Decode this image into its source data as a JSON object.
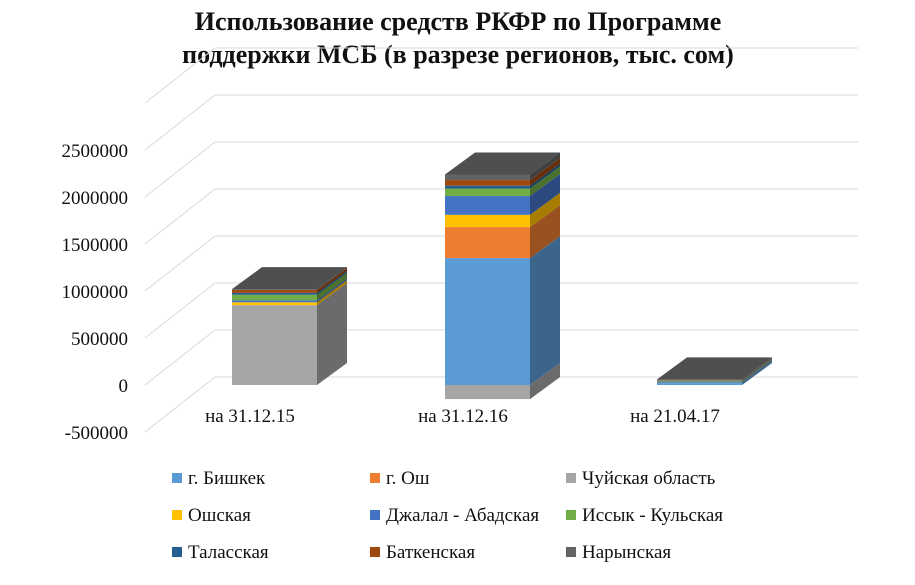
{
  "chart_data": {
    "type": "bar",
    "stacked": true,
    "three_d": true,
    "title_lines": [
      "Использование средств РКФР по Программе",
      "поддержки МСБ (в разрезе регионов, тыс. сом)"
    ],
    "categories": [
      "на 31.12.15",
      "на 31.12.16",
      "на 21.04.17"
    ],
    "y_ticks": [
      "2500000",
      "2000000",
      "1500000",
      "1000000",
      "500000",
      "0",
      "-500000"
    ],
    "ylim": [
      -500000,
      2500000
    ],
    "grid": true,
    "legend_position": "bottom",
    "series": [
      {
        "name": "г. Бишкек",
        "color": "#5b9bd5",
        "values": [
          0,
          1350000,
          20000
        ]
      },
      {
        "name": "г. Ош",
        "color": "#ed7d31",
        "values": [
          0,
          330000,
          0
        ]
      },
      {
        "name": "Чуйская область",
        "color": "#a5a5a5",
        "values": [
          850000,
          -150000,
          0
        ]
      },
      {
        "name": "Ошская",
        "color": "#ffc000",
        "values": [
          30000,
          130000,
          0
        ]
      },
      {
        "name": "Джалал - Абадская",
        "color": "#4472c4",
        "values": [
          20000,
          200000,
          10000
        ]
      },
      {
        "name": "Иссык - Кульская",
        "color": "#70ad47",
        "values": [
          60000,
          80000,
          10000
        ]
      },
      {
        "name": "Таласская",
        "color": "#255e91",
        "values": [
          20000,
          30000,
          5000
        ]
      },
      {
        "name": "Баткенская",
        "color": "#9e480e",
        "values": [
          30000,
          60000,
          5000
        ]
      },
      {
        "name": "Нарынская",
        "color": "#636363",
        "values": [
          10000,
          60000,
          10000
        ]
      }
    ]
  }
}
